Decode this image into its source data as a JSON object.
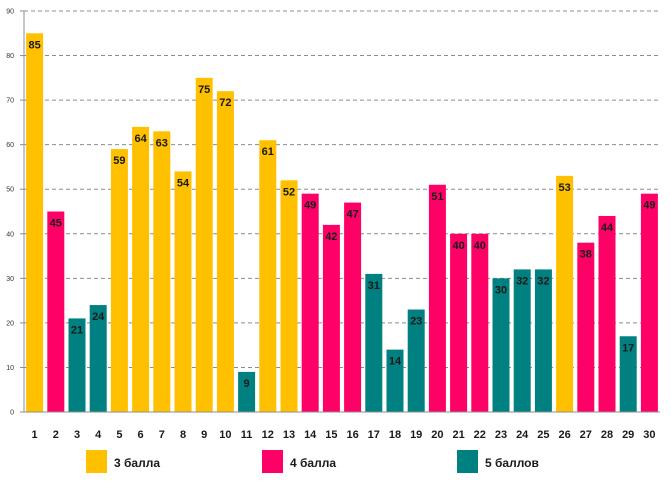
{
  "chart_data": {
    "type": "bar",
    "title": "",
    "xlabel": "",
    "ylabel": "",
    "ylim": [
      0,
      90
    ],
    "yticks": [
      0,
      10,
      20,
      30,
      40,
      50,
      60,
      70,
      80,
      90
    ],
    "grid": true,
    "legend_position": "bottom",
    "categories": [
      "1",
      "2",
      "3",
      "4",
      "5",
      "6",
      "7",
      "8",
      "9",
      "10",
      "11",
      "12",
      "13",
      "14",
      "15",
      "16",
      "17",
      "18",
      "19",
      "20",
      "21",
      "22",
      "23",
      "24",
      "25",
      "26",
      "27",
      "28",
      "29",
      "30"
    ],
    "values": [
      85,
      45,
      21,
      24,
      59,
      64,
      63,
      54,
      75,
      72,
      9,
      61,
      52,
      49,
      42,
      47,
      31,
      14,
      23,
      51,
      40,
      40,
      30,
      32,
      32,
      53,
      38,
      44,
      17,
      49
    ],
    "groups": [
      "g3",
      "g4",
      "g5",
      "g5",
      "g3",
      "g3",
      "g3",
      "g3",
      "g3",
      "g3",
      "g5",
      "g3",
      "g3",
      "g4",
      "g4",
      "g4",
      "g5",
      "g5",
      "g5",
      "g4",
      "g4",
      "g4",
      "g5",
      "g5",
      "g5",
      "g3",
      "g4",
      "g4",
      "g5",
      "g4"
    ],
    "series": [
      {
        "id": "g3",
        "name": "3 балла",
        "color": "#FFC000"
      },
      {
        "id": "g4",
        "name": "4 балла",
        "color": "#FF0066"
      },
      {
        "id": "g5",
        "name": "5 баллов",
        "color": "#008080"
      }
    ]
  }
}
